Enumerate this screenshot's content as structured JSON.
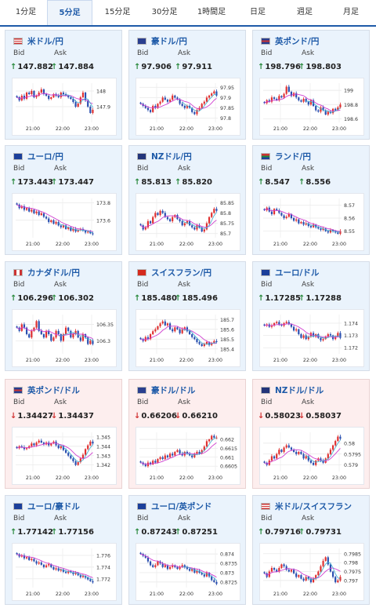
{
  "tabs": [
    {
      "label": "1分足",
      "active": false
    },
    {
      "label": "5分足",
      "active": true
    },
    {
      "label": "15分足",
      "active": false
    },
    {
      "label": "30分足",
      "active": false
    },
    {
      "label": "1時間足",
      "active": false
    },
    {
      "label": "日足",
      "active": false
    },
    {
      "label": "週足",
      "active": false
    },
    {
      "label": "月足",
      "active": false
    }
  ],
  "colors": {
    "accent": "#1e5aa8",
    "up_arrow": "#2a8a3e",
    "down_arrow": "#d03030",
    "candle_up": "#e03030",
    "candle_down": "#2a4fb0",
    "ma": "#d040d0",
    "ma2": "#40b0d0"
  },
  "bid_label": "Bid",
  "ask_label": "Ask",
  "x_ticks": [
    "21:00",
    "22:00",
    "23:00"
  ],
  "cards": [
    {
      "pair": "米ドル/円",
      "flag": "us",
      "dir": "up",
      "bid": "147.882",
      "ask": "147.884",
      "y_ticks": [
        "148",
        "147.9"
      ],
      "chart_data": {
        "type": "candlestick",
        "ylim": [
          147.8,
          148.05
        ],
        "closes": [
          147.96,
          147.94,
          147.97,
          147.95,
          147.99,
          147.98,
          148.0,
          147.96,
          147.97,
          147.99,
          148.01,
          147.98,
          147.97,
          147.95,
          147.96,
          147.98,
          147.97,
          147.96,
          147.99,
          147.98,
          147.97,
          147.96,
          147.95,
          147.93,
          147.9,
          147.92,
          147.96,
          147.99,
          147.94,
          147.9,
          147.86,
          147.88
        ]
      }
    },
    {
      "pair": "豪ドル/円",
      "flag": "au",
      "dir": "up",
      "bid": "97.906",
      "ask": "97.911",
      "y_ticks": [
        "97.95",
        "97.9",
        "97.85",
        "97.8"
      ],
      "chart_data": {
        "type": "candlestick",
        "ylim": [
          97.78,
          97.97
        ],
        "closes": [
          97.87,
          97.86,
          97.85,
          97.84,
          97.83,
          97.86,
          97.85,
          97.87,
          97.88,
          97.9,
          97.89,
          97.88,
          97.89,
          97.91,
          97.9,
          97.89,
          97.87,
          97.86,
          97.85,
          97.86,
          97.85,
          97.83,
          97.82,
          97.84,
          97.85,
          97.87,
          97.88,
          97.9,
          97.91,
          97.92,
          97.93,
          97.91
        ]
      }
    },
    {
      "pair": "英ポンド/円",
      "flag": "gb",
      "dir": "up",
      "bid": "198.796",
      "ask": "198.803",
      "y_ticks": [
        "199",
        "198.8",
        "198.6"
      ],
      "chart_data": {
        "type": "candlestick",
        "ylim": [
          198.55,
          199.1
        ],
        "closes": [
          198.82,
          198.86,
          198.84,
          198.9,
          198.88,
          198.86,
          198.92,
          198.9,
          198.95,
          199.05,
          198.98,
          198.92,
          198.96,
          198.9,
          198.86,
          198.84,
          198.88,
          198.84,
          198.8,
          198.86,
          198.78,
          198.72,
          198.7,
          198.76,
          198.72,
          198.66,
          198.7,
          198.68,
          198.74,
          198.72,
          198.76,
          198.8
        ]
      }
    },
    {
      "pair": "ユーロ/円",
      "flag": "eu",
      "dir": "up",
      "bid": "173.443",
      "ask": "173.447",
      "y_ticks": [
        "173.8",
        "173.6"
      ],
      "chart_data": {
        "type": "candlestick",
        "ylim": [
          173.4,
          173.85
        ],
        "closes": [
          173.78,
          173.74,
          173.76,
          173.72,
          173.74,
          173.7,
          173.72,
          173.68,
          173.7,
          173.66,
          173.68,
          173.64,
          173.62,
          173.58,
          173.6,
          173.56,
          173.58,
          173.54,
          173.52,
          173.54,
          173.5,
          173.52,
          173.48,
          173.5,
          173.47,
          173.49,
          173.5,
          173.48,
          173.46,
          173.47,
          173.45,
          173.44
        ]
      }
    },
    {
      "pair": "NZドル/円",
      "flag": "nz",
      "dir": "up",
      "bid": "85.813",
      "ask": "85.820",
      "y_ticks": [
        "85.85",
        "85.8",
        "85.75",
        "85.7"
      ],
      "chart_data": {
        "type": "candlestick",
        "ylim": [
          85.68,
          85.87
        ],
        "closes": [
          85.74,
          85.72,
          85.73,
          85.76,
          85.75,
          85.78,
          85.8,
          85.79,
          85.81,
          85.8,
          85.78,
          85.77,
          85.76,
          85.78,
          85.79,
          85.77,
          85.76,
          85.74,
          85.75,
          85.76,
          85.74,
          85.73,
          85.72,
          85.74,
          85.73,
          85.71,
          85.72,
          85.75,
          85.78,
          85.8,
          85.82,
          85.81
        ]
      }
    },
    {
      "pair": "ランド/円",
      "flag": "za",
      "dir": "up",
      "bid": "8.547",
      "ask": "8.556",
      "y_ticks": [
        "8.57",
        "8.56",
        "8.55"
      ],
      "chart_data": {
        "type": "candlestick",
        "ylim": [
          8.545,
          8.575
        ],
        "closes": [
          8.566,
          8.568,
          8.565,
          8.563,
          8.567,
          8.566,
          8.564,
          8.562,
          8.56,
          8.561,
          8.563,
          8.56,
          8.558,
          8.559,
          8.556,
          8.557,
          8.555,
          8.556,
          8.554,
          8.553,
          8.555,
          8.553,
          8.552,
          8.551,
          8.552,
          8.55,
          8.549,
          8.551,
          8.55,
          8.549,
          8.548,
          8.55
        ]
      }
    },
    {
      "pair": "カナダドル/円",
      "flag": "ca",
      "dir": "up",
      "bid": "106.296",
      "ask": "106.302",
      "y_ticks": [
        "106.35",
        "106.3"
      ],
      "chart_data": {
        "type": "candlestick",
        "ylim": [
          106.26,
          106.38
        ],
        "closes": [
          106.34,
          106.33,
          106.35,
          106.34,
          106.32,
          106.31,
          106.33,
          106.34,
          106.36,
          106.33,
          106.32,
          106.31,
          106.33,
          106.32,
          106.3,
          106.31,
          106.33,
          106.32,
          106.3,
          106.32,
          106.34,
          106.33,
          106.31,
          106.32,
          106.33,
          106.31,
          106.3,
          106.32,
          106.31,
          106.29,
          106.3,
          106.29
        ]
      }
    },
    {
      "pair": "スイスフラン/円",
      "flag": "ch",
      "dir": "up",
      "bid": "185.480",
      "ask": "185.496",
      "y_ticks": [
        "185.7",
        "185.6",
        "185.5",
        "185.4"
      ],
      "chart_data": {
        "type": "candlestick",
        "ylim": [
          185.35,
          185.75
        ],
        "closes": [
          185.5,
          185.48,
          185.52,
          185.5,
          185.55,
          185.58,
          185.6,
          185.63,
          185.66,
          185.68,
          185.64,
          185.66,
          185.6,
          185.58,
          185.62,
          185.6,
          185.56,
          185.6,
          185.62,
          185.58,
          185.55,
          185.52,
          185.5,
          185.47,
          185.45,
          185.43,
          185.45,
          185.47,
          185.44,
          185.46,
          185.48,
          185.47
        ]
      }
    },
    {
      "pair": "ユーロ/ドル",
      "flag": "eu2",
      "dir": "up",
      "bid": "1.17285",
      "ask": "1.17288",
      "y_ticks": [
        "1.174",
        "1.173",
        "1.172"
      ],
      "chart_data": {
        "type": "candlestick",
        "ylim": [
          1.1715,
          1.1747
        ],
        "closes": [
          1.1738,
          1.1739,
          1.1737,
          1.1738,
          1.174,
          1.1741,
          1.1739,
          1.1738,
          1.174,
          1.1741,
          1.1739,
          1.1737,
          1.1734,
          1.1735,
          1.1731,
          1.1728,
          1.173,
          1.1727,
          1.1729,
          1.1732,
          1.1729,
          1.1731,
          1.1728,
          1.1726,
          1.1727,
          1.1729,
          1.1731,
          1.173,
          1.1727,
          1.1729,
          1.1732,
          1.1728
        ]
      }
    },
    {
      "pair": "英ポンド/ドル",
      "flag": "gb2",
      "dir": "down",
      "bid": "1.34427",
      "ask": "1.34437",
      "y_ticks": [
        "1.345",
        "1.344",
        "1.343",
        "1.342"
      ],
      "chart_data": {
        "type": "candlestick",
        "ylim": [
          1.3413,
          1.3455
        ],
        "closes": [
          1.3438,
          1.344,
          1.3439,
          1.3437,
          1.3438,
          1.344,
          1.3443,
          1.3441,
          1.3444,
          1.3446,
          1.3444,
          1.3442,
          1.3444,
          1.3441,
          1.3443,
          1.3445,
          1.3441,
          1.3438,
          1.344,
          1.3436,
          1.3433,
          1.343,
          1.3427,
          1.3424,
          1.342,
          1.3423,
          1.3427,
          1.3431,
          1.3437,
          1.3441,
          1.3445,
          1.3443
        ]
      }
    },
    {
      "pair": "豪ドル/ドル",
      "flag": "au2",
      "dir": "down",
      "bid": "0.66206",
      "ask": "0.66210",
      "y_ticks": [
        "0.662",
        "0.6615",
        "0.661",
        "0.6605"
      ],
      "chart_data": {
        "type": "candlestick",
        "ylim": [
          0.6602,
          0.6624
        ],
        "closes": [
          0.6607,
          0.6606,
          0.6605,
          0.6607,
          0.6606,
          0.6608,
          0.6607,
          0.6609,
          0.661,
          0.6609,
          0.6611,
          0.661,
          0.6612,
          0.6611,
          0.6613,
          0.6614,
          0.6612,
          0.6611,
          0.6613,
          0.6612,
          0.6611,
          0.661,
          0.6612,
          0.6613,
          0.6612,
          0.6614,
          0.6616,
          0.6619,
          0.662,
          0.6622,
          0.6621,
          0.6621
        ]
      }
    },
    {
      "pair": "NZドル/ドル",
      "flag": "nz2",
      "dir": "down",
      "bid": "0.58023",
      "ask": "0.58037",
      "y_ticks": [
        "0.58",
        "0.5795",
        "0.579"
      ],
      "chart_data": {
        "type": "candlestick",
        "ylim": [
          0.5787,
          0.5805
        ],
        "closes": [
          0.5791,
          0.579,
          0.5792,
          0.5794,
          0.5793,
          0.5795,
          0.5797,
          0.5796,
          0.5798,
          0.5799,
          0.5798,
          0.5797,
          0.5796,
          0.5795,
          0.5796,
          0.5795,
          0.5793,
          0.5794,
          0.5792,
          0.5791,
          0.579,
          0.5792,
          0.5793,
          0.5792,
          0.5791,
          0.5793,
          0.5795,
          0.5797,
          0.5799,
          0.5801,
          0.5803,
          0.5802
        ]
      }
    },
    {
      "pair": "ユーロ/豪ドル",
      "flag": "eu3",
      "dir": "up",
      "bid": "1.77142",
      "ask": "1.77156",
      "y_ticks": [
        "1.776",
        "1.774",
        "1.772"
      ],
      "chart_data": {
        "type": "candlestick",
        "ylim": [
          1.7705,
          1.7772
        ],
        "closes": [
          1.7762,
          1.7758,
          1.776,
          1.7755,
          1.7757,
          1.7752,
          1.7754,
          1.775,
          1.7746,
          1.7748,
          1.7744,
          1.774,
          1.7743,
          1.7745,
          1.774,
          1.7736,
          1.7738,
          1.7734,
          1.7736,
          1.7732,
          1.773,
          1.7733,
          1.7731,
          1.7728,
          1.773,
          1.7726,
          1.7723,
          1.7725,
          1.7722,
          1.7719,
          1.7716,
          1.7714
        ]
      }
    },
    {
      "pair": "ユーロ/英ポンド",
      "flag": "eu4",
      "dir": "up",
      "bid": "0.87243",
      "ask": "0.87251",
      "y_ticks": [
        "0.874",
        "0.8735",
        "0.873",
        "0.8725"
      ],
      "chart_data": {
        "type": "candlestick",
        "ylim": [
          0.8722,
          0.8743
        ],
        "closes": [
          0.874,
          0.8739,
          0.8738,
          0.8736,
          0.8734,
          0.8733,
          0.8734,
          0.8736,
          0.8735,
          0.8733,
          0.8734,
          0.8732,
          0.8733,
          0.8734,
          0.8733,
          0.8732,
          0.8733,
          0.8734,
          0.8733,
          0.8732,
          0.8731,
          0.8732,
          0.873,
          0.8731,
          0.873,
          0.8729,
          0.8728,
          0.873,
          0.8728,
          0.8726,
          0.8725,
          0.8724
        ]
      }
    },
    {
      "pair": "米ドル/スイスフラン",
      "flag": "us2",
      "dir": "up",
      "bid": "0.79716",
      "ask": "0.79731",
      "y_ticks": [
        "0.7985",
        "0.798",
        "0.7975",
        "0.797"
      ],
      "chart_data": {
        "type": "candlestick",
        "ylim": [
          0.7966,
          0.7988
        ],
        "closes": [
          0.7974,
          0.7972,
          0.7975,
          0.7977,
          0.7976,
          0.7975,
          0.7977,
          0.7979,
          0.7978,
          0.7976,
          0.7975,
          0.7976,
          0.7974,
          0.7972,
          0.7973,
          0.7971,
          0.797,
          0.7972,
          0.7971,
          0.7969,
          0.7971,
          0.7973,
          0.7975,
          0.7978,
          0.7981,
          0.7983,
          0.7979,
          0.7975,
          0.7972,
          0.7969,
          0.797,
          0.7972
        ]
      }
    }
  ]
}
